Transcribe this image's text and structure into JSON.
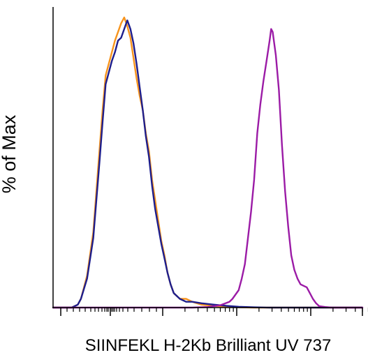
{
  "chart_data": {
    "type": "line",
    "title": "",
    "xlabel": "SIINFEKL H-2Kb Brilliant UV 737",
    "ylabel": "% of Max",
    "x_scale": "biexponential (tick marks only, no tick labels)",
    "x_major_decades": [
      0,
      1,
      2,
      3
    ],
    "xlim": [
      0,
      1
    ],
    "ylim": [
      0,
      100
    ],
    "grid": false,
    "legend": "none",
    "series": [
      {
        "color": "#F7941D",
        "points": [
          [
            0.0,
            0
          ],
          [
            0.06,
            0
          ],
          [
            0.08,
            1
          ],
          [
            0.09,
            3
          ],
          [
            0.11,
            11
          ],
          [
            0.13,
            26
          ],
          [
            0.15,
            54
          ],
          [
            0.16,
            68
          ],
          [
            0.17,
            80
          ],
          [
            0.19,
            88
          ],
          [
            0.2,
            92
          ],
          [
            0.22,
            98
          ],
          [
            0.23,
            100
          ],
          [
            0.24,
            97
          ],
          [
            0.25,
            93
          ],
          [
            0.26,
            86
          ],
          [
            0.27,
            79
          ],
          [
            0.28,
            73
          ],
          [
            0.29,
            68
          ],
          [
            0.3,
            60
          ],
          [
            0.31,
            54
          ],
          [
            0.32,
            44
          ],
          [
            0.33,
            37
          ],
          [
            0.34,
            30
          ],
          [
            0.35,
            23
          ],
          [
            0.36,
            18
          ],
          [
            0.37,
            12
          ],
          [
            0.38,
            8
          ],
          [
            0.39,
            5
          ],
          [
            0.41,
            3
          ],
          [
            0.43,
            3
          ],
          [
            0.45,
            2
          ],
          [
            0.48,
            1
          ],
          [
            0.52,
            0.6
          ],
          [
            0.56,
            0.3
          ],
          [
            0.6,
            0.1
          ],
          [
            0.65,
            0
          ],
          [
            1.0,
            0
          ]
        ]
      },
      {
        "color": "#1E1E8C",
        "points": [
          [
            0.0,
            0
          ],
          [
            0.06,
            0
          ],
          [
            0.08,
            1
          ],
          [
            0.09,
            3
          ],
          [
            0.11,
            10
          ],
          [
            0.13,
            24
          ],
          [
            0.15,
            50
          ],
          [
            0.16,
            64
          ],
          [
            0.17,
            77
          ],
          [
            0.19,
            85
          ],
          [
            0.2,
            88
          ],
          [
            0.21,
            92
          ],
          [
            0.22,
            93
          ],
          [
            0.23,
            96
          ],
          [
            0.24,
            99
          ],
          [
            0.25,
            96
          ],
          [
            0.26,
            91
          ],
          [
            0.27,
            84
          ],
          [
            0.28,
            76
          ],
          [
            0.29,
            68
          ],
          [
            0.3,
            59
          ],
          [
            0.31,
            52
          ],
          [
            0.32,
            42
          ],
          [
            0.33,
            34
          ],
          [
            0.34,
            28
          ],
          [
            0.35,
            22
          ],
          [
            0.36,
            17
          ],
          [
            0.37,
            12
          ],
          [
            0.38,
            8
          ],
          [
            0.39,
            5
          ],
          [
            0.41,
            3
          ],
          [
            0.43,
            2
          ],
          [
            0.45,
            2
          ],
          [
            0.48,
            1.5
          ],
          [
            0.52,
            1
          ],
          [
            0.56,
            0.6
          ],
          [
            0.6,
            0.3
          ],
          [
            0.65,
            0.1
          ],
          [
            0.7,
            0
          ],
          [
            1.0,
            0
          ]
        ]
      },
      {
        "color": "#9B1BA6",
        "points": [
          [
            0.0,
            0
          ],
          [
            0.45,
            0
          ],
          [
            0.5,
            0.2
          ],
          [
            0.54,
            0.8
          ],
          [
            0.57,
            2
          ],
          [
            0.58,
            3
          ],
          [
            0.6,
            6
          ],
          [
            0.61,
            10
          ],
          [
            0.62,
            15
          ],
          [
            0.63,
            24
          ],
          [
            0.64,
            33
          ],
          [
            0.65,
            44
          ],
          [
            0.66,
            60
          ],
          [
            0.67,
            70
          ],
          [
            0.68,
            78
          ],
          [
            0.69,
            85
          ],
          [
            0.7,
            92
          ],
          [
            0.705,
            96
          ],
          [
            0.71,
            95
          ],
          [
            0.72,
            87
          ],
          [
            0.73,
            75
          ],
          [
            0.74,
            56
          ],
          [
            0.75,
            40
          ],
          [
            0.76,
            28
          ],
          [
            0.77,
            18
          ],
          [
            0.78,
            13
          ],
          [
            0.79,
            10
          ],
          [
            0.8,
            8
          ],
          [
            0.81,
            7.5
          ],
          [
            0.82,
            7
          ],
          [
            0.83,
            5
          ],
          [
            0.84,
            3
          ],
          [
            0.85,
            1.5
          ],
          [
            0.86,
            0.5
          ],
          [
            0.88,
            0.2
          ],
          [
            0.9,
            0
          ],
          [
            1.0,
            0
          ]
        ]
      }
    ]
  }
}
